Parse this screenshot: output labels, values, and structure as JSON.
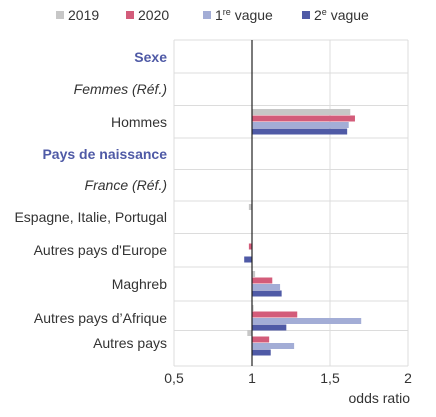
{
  "chart_data": {
    "type": "bar",
    "orientation": "horizontal",
    "legend_position": "top",
    "grid": true,
    "xlabel": "odds ratio",
    "xlim": [
      0.5,
      2
    ],
    "xticks": [
      {
        "value": 0.5,
        "label": "0,5"
      },
      {
        "value": 1,
        "label": "1"
      },
      {
        "value": 1.5,
        "label": "1,5"
      },
      {
        "value": 2,
        "label": "2"
      }
    ],
    "reference_value": 1,
    "series": [
      {
        "name": "2019",
        "color": "#c7c7c7"
      },
      {
        "name": "2020",
        "color": "#d35c7a"
      },
      {
        "name": "1re vague",
        "name_base": "1",
        "name_sup": "re",
        "name_rest": " vague",
        "color": "#a3add6"
      },
      {
        "name": "2e vague",
        "name_base": "2",
        "name_sup": "e",
        "name_rest": " vague",
        "color": "#4f5aa6"
      }
    ],
    "rows": [
      {
        "label": "Sexe",
        "kind": "header",
        "values": null
      },
      {
        "label": "Femmes (Réf.)",
        "kind": "reference",
        "values": null
      },
      {
        "label": "Hommes",
        "kind": "data",
        "values": [
          1.63,
          1.66,
          1.62,
          1.61
        ]
      },
      {
        "label": "Pays de naissance",
        "kind": "header",
        "values": null
      },
      {
        "label": "France (Réf.)",
        "kind": "reference",
        "values": null
      },
      {
        "label": "Espagne, Italie, Portugal",
        "kind": "data",
        "values": [
          0.98,
          1.0,
          1.0,
          1.0
        ]
      },
      {
        "label": "Autres pays d'Europe",
        "kind": "data",
        "values": [
          1.0,
          0.98,
          1.0,
          0.95
        ]
      },
      {
        "label": "Maghreb",
        "kind": "data",
        "values": [
          1.02,
          1.13,
          1.18,
          1.19
        ]
      },
      {
        "label": "Autres pays d’Afrique",
        "kind": "data",
        "values": [
          1.01,
          1.29,
          1.7,
          1.22
        ]
      },
      {
        "label": "Autres pays",
        "kind": "data",
        "values": [
          0.97,
          1.11,
          1.27,
          1.12
        ]
      }
    ]
  }
}
